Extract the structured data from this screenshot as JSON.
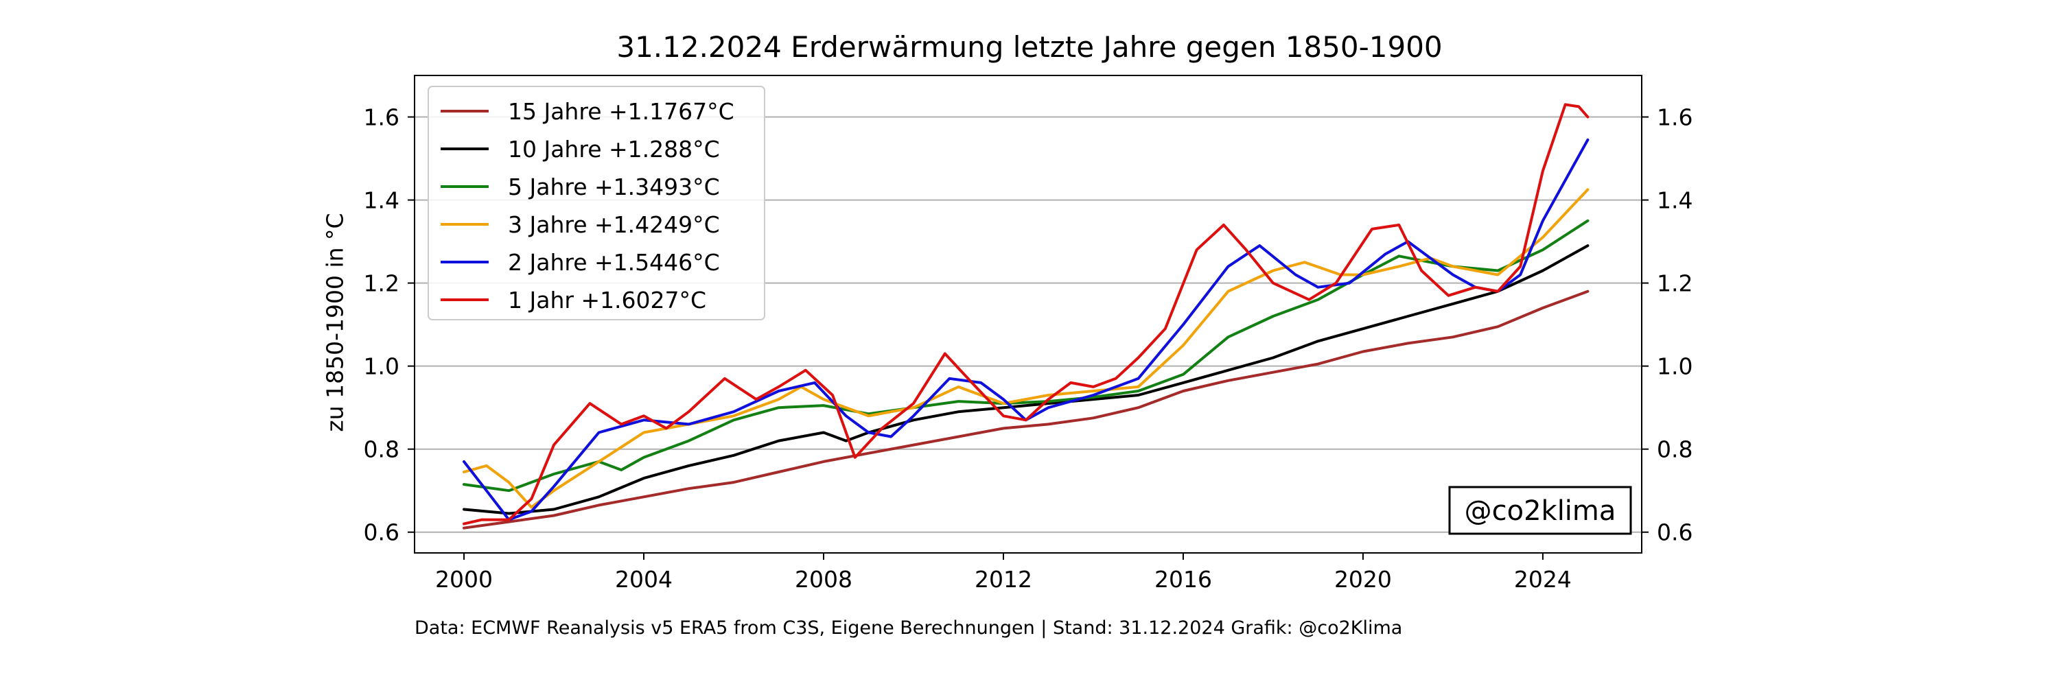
{
  "chart_data": {
    "type": "line",
    "title": "31.12.2024 Erderwärmung letzte Jahre gegen 1850-1900",
    "xlabel": "",
    "ylabel": "zu 1850-1900 in °C",
    "xlim": [
      1998.9,
      2026.2
    ],
    "ylim": [
      0.55,
      1.7
    ],
    "xticks": [
      2000,
      2004,
      2008,
      2012,
      2016,
      2020,
      2024
    ],
    "yticks": [
      0.6,
      0.8,
      1.0,
      1.2,
      1.4,
      1.6
    ],
    "grid": "horizontal",
    "legend_position": "top-left",
    "watermark": "@co2klima",
    "footer": "Data: ECMWF Reanalysis v5 ERA5 from C3S, Eigene Berechnungen | Stand: 31.12.2024 Grafik: @co2Klima",
    "series": [
      {
        "name": "15 Jahre +1.1767°C",
        "color": "#a52a2a",
        "x": [
          2000,
          2001,
          2002,
          2003,
          2004,
          2005,
          2006,
          2007,
          2008,
          2009,
          2010,
          2011,
          2012,
          2013,
          2014,
          2015,
          2016,
          2017,
          2018,
          2019,
          2020,
          2021,
          2022,
          2023,
          2024,
          2025
        ],
        "y": [
          0.61,
          0.625,
          0.64,
          0.665,
          0.685,
          0.705,
          0.72,
          0.745,
          0.77,
          0.79,
          0.81,
          0.83,
          0.85,
          0.86,
          0.875,
          0.9,
          0.94,
          0.965,
          0.985,
          1.005,
          1.035,
          1.055,
          1.07,
          1.095,
          1.14,
          1.18
        ]
      },
      {
        "name": "10 Jahre +1.288°C",
        "color": "#000000",
        "x": [
          2000,
          2001,
          2002,
          2003,
          2004,
          2005,
          2006,
          2007,
          2008,
          2008.5,
          2009,
          2010,
          2011,
          2012,
          2013,
          2014,
          2015,
          2016,
          2017,
          2018,
          2019,
          2020,
          2021,
          2022,
          2023,
          2024,
          2025
        ],
        "y": [
          0.655,
          0.645,
          0.655,
          0.685,
          0.73,
          0.76,
          0.785,
          0.82,
          0.84,
          0.82,
          0.84,
          0.87,
          0.89,
          0.9,
          0.91,
          0.92,
          0.93,
          0.96,
          0.99,
          1.02,
          1.06,
          1.09,
          1.12,
          1.15,
          1.18,
          1.23,
          1.29
        ]
      },
      {
        "name": "5 Jahre +1.3493°C",
        "color": "#138013",
        "x": [
          2000,
          2001,
          2002,
          2003,
          2003.5,
          2004,
          2005,
          2006,
          2007,
          2008,
          2009,
          2010,
          2011,
          2012,
          2013,
          2014,
          2015,
          2016,
          2017,
          2018,
          2019,
          2020,
          2020.8,
          2021.5,
          2022,
          2023,
          2024,
          2025
        ],
        "y": [
          0.715,
          0.7,
          0.74,
          0.77,
          0.75,
          0.78,
          0.82,
          0.87,
          0.9,
          0.905,
          0.885,
          0.9,
          0.915,
          0.91,
          0.915,
          0.925,
          0.94,
          0.98,
          1.07,
          1.12,
          1.16,
          1.22,
          1.265,
          1.25,
          1.24,
          1.23,
          1.28,
          1.35
        ]
      },
      {
        "name": "3 Jahre +1.4249°C",
        "color": "#f0a30a",
        "x": [
          2000,
          2000.5,
          2001,
          2001.5,
          2002,
          2003,
          2004,
          2005,
          2006,
          2007,
          2007.5,
          2008,
          2009,
          2010,
          2011,
          2012,
          2013,
          2014,
          2015,
          2016,
          2017,
          2018,
          2018.7,
          2019.5,
          2020,
          2020.8,
          2021.5,
          2022,
          2023,
          2024,
          2025
        ],
        "y": [
          0.745,
          0.76,
          0.72,
          0.66,
          0.7,
          0.77,
          0.84,
          0.86,
          0.88,
          0.92,
          0.95,
          0.92,
          0.88,
          0.9,
          0.95,
          0.91,
          0.93,
          0.94,
          0.95,
          1.05,
          1.18,
          1.23,
          1.25,
          1.22,
          1.22,
          1.24,
          1.26,
          1.24,
          1.22,
          1.31,
          1.425
        ]
      },
      {
        "name": "2 Jahre +1.5446°C",
        "color": "#1010dd",
        "x": [
          2000,
          2000.5,
          2001,
          2001.5,
          2002,
          2003,
          2004,
          2005,
          2006,
          2007,
          2007.8,
          2008.5,
          2009,
          2009.5,
          2010,
          2010.8,
          2011.5,
          2012,
          2012.5,
          2013,
          2014,
          2015,
          2016,
          2017,
          2017.7,
          2018.5,
          2019,
          2019.7,
          2020.5,
          2021,
          2022,
          2022.5,
          2023,
          2023.5,
          2024,
          2025
        ],
        "y": [
          0.77,
          0.7,
          0.63,
          0.65,
          0.71,
          0.84,
          0.87,
          0.86,
          0.89,
          0.94,
          0.96,
          0.88,
          0.84,
          0.83,
          0.88,
          0.97,
          0.96,
          0.92,
          0.87,
          0.9,
          0.93,
          0.97,
          1.1,
          1.24,
          1.29,
          1.22,
          1.19,
          1.2,
          1.27,
          1.3,
          1.22,
          1.19,
          1.18,
          1.22,
          1.35,
          1.545
        ]
      },
      {
        "name": "1 Jahr +1.6027°C",
        "color": "#dd1010",
        "x": [
          2000,
          2000.4,
          2001,
          2001.5,
          2002,
          2002.8,
          2003.5,
          2004,
          2004.5,
          2005,
          2005.8,
          2006.5,
          2007,
          2007.6,
          2008.2,
          2008.7,
          2009.3,
          2010,
          2010.7,
          2011.3,
          2012,
          2012.5,
          2013,
          2013.5,
          2014,
          2014.5,
          2015,
          2015.6,
          2016.3,
          2016.9,
          2017.4,
          2018,
          2018.8,
          2019.4,
          2020.2,
          2020.8,
          2021.3,
          2021.9,
          2022.5,
          2023,
          2023.5,
          2024,
          2024.5,
          2024.8,
          2025
        ],
        "y": [
          0.62,
          0.63,
          0.63,
          0.68,
          0.81,
          0.91,
          0.86,
          0.88,
          0.85,
          0.89,
          0.97,
          0.92,
          0.95,
          0.99,
          0.93,
          0.78,
          0.85,
          0.91,
          1.03,
          0.96,
          0.88,
          0.87,
          0.92,
          0.96,
          0.95,
          0.97,
          1.02,
          1.09,
          1.28,
          1.34,
          1.28,
          1.2,
          1.16,
          1.2,
          1.33,
          1.34,
          1.23,
          1.17,
          1.19,
          1.18,
          1.24,
          1.47,
          1.63,
          1.625,
          1.6
        ]
      }
    ]
  }
}
